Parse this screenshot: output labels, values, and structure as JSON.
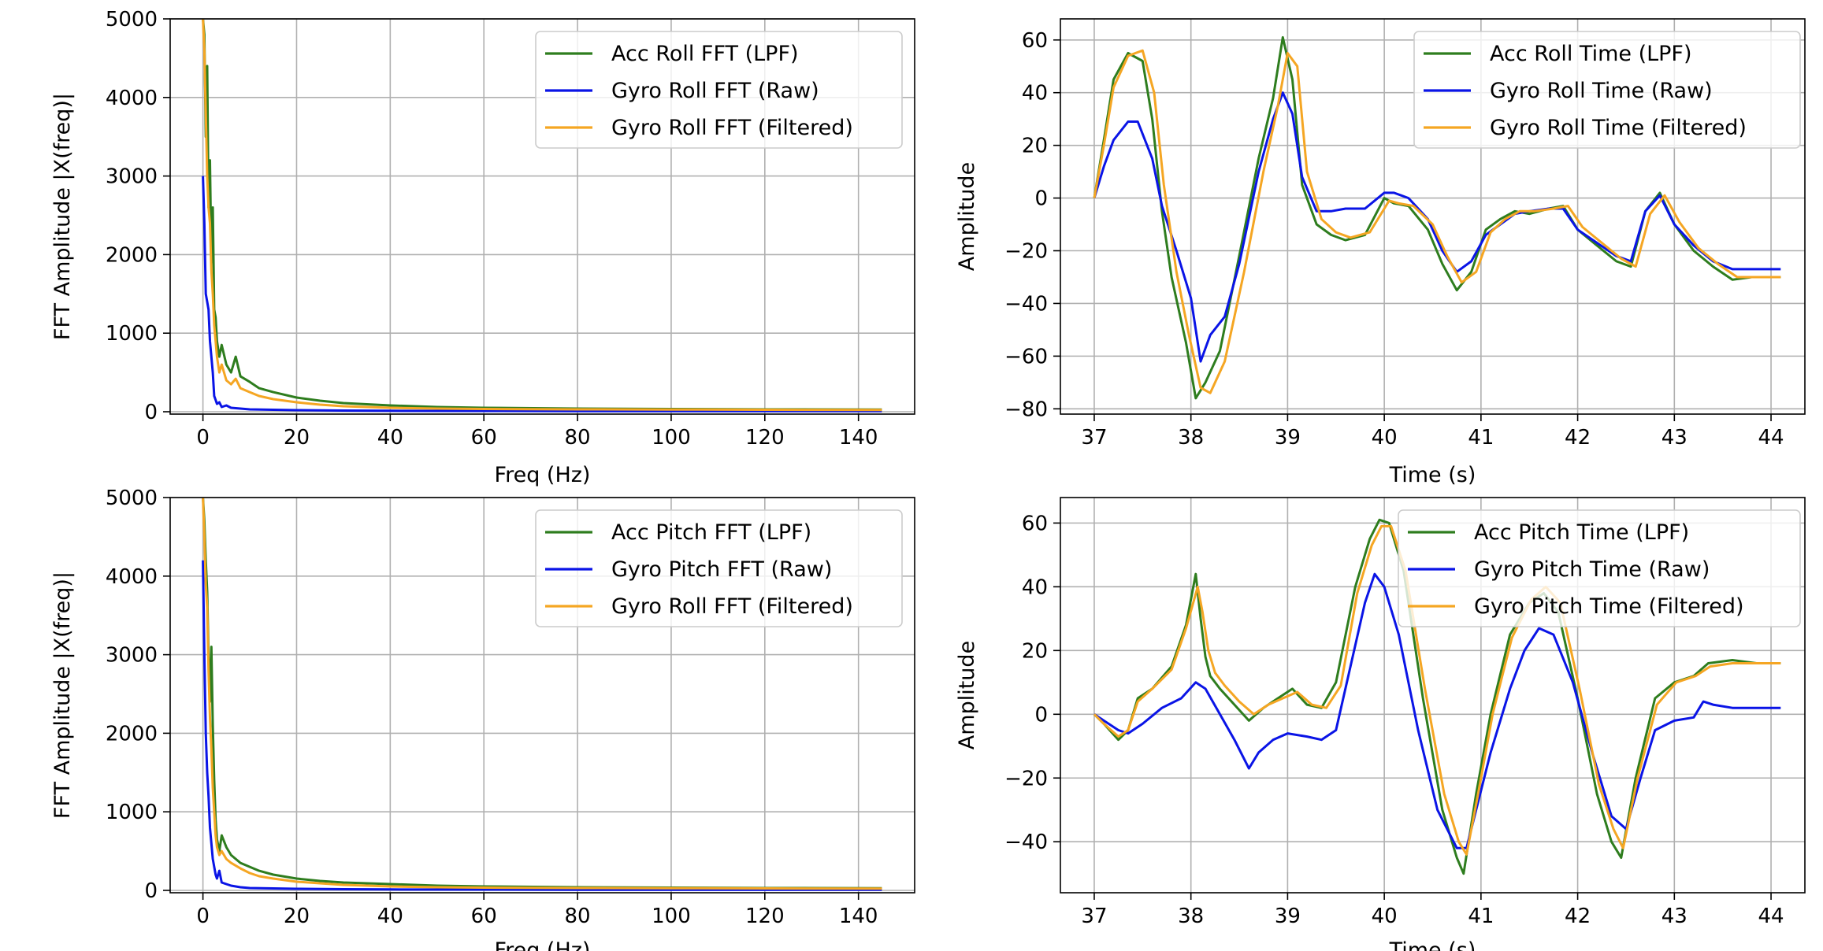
{
  "chart_data": [
    {
      "type": "line",
      "id": "roll-fft",
      "xlabel": "Freq (Hz)",
      "ylabel": "FFT Amplitude |X(freq)|",
      "xlim": [
        -7,
        152
      ],
      "ylim": [
        -30,
        5000
      ],
      "xticks": [
        0,
        20,
        40,
        60,
        80,
        100,
        120,
        140
      ],
      "yticks": [
        0,
        1000,
        2000,
        3000,
        4000,
        5000
      ],
      "grid": true,
      "legend_position": "top-right",
      "series": [
        {
          "name": "Acc Roll FFT (LPF)",
          "color": "#2e7d1e",
          "x": [
            0,
            0.3,
            0.6,
            0.9,
            1.2,
            1.5,
            1.8,
            2.1,
            2.4,
            2.7,
            3.0,
            3.5,
            4,
            5,
            6,
            7,
            8,
            10,
            12,
            15,
            20,
            25,
            30,
            40,
            50,
            60,
            80,
            100,
            120,
            145
          ],
          "y": [
            5000,
            4800,
            3500,
            4400,
            2600,
            3200,
            1900,
            2600,
            1300,
            1200,
            900,
            700,
            850,
            600,
            500,
            700,
            450,
            380,
            300,
            250,
            180,
            140,
            110,
            80,
            60,
            50,
            40,
            35,
            30,
            28
          ]
        },
        {
          "name": "Gyro Roll FFT (Raw)",
          "color": "#0a14e6",
          "x": [
            0,
            0.3,
            0.6,
            0.9,
            1.2,
            1.5,
            1.8,
            2.1,
            2.4,
            2.7,
            3.0,
            3.5,
            4,
            5,
            6,
            8,
            10,
            15,
            20,
            30,
            40,
            60,
            80,
            100,
            120,
            145
          ],
          "y": [
            3000,
            2400,
            1500,
            1400,
            1300,
            900,
            700,
            500,
            200,
            150,
            100,
            120,
            60,
            80,
            50,
            40,
            30,
            25,
            20,
            15,
            12,
            10,
            8,
            8,
            8,
            8
          ]
        },
        {
          "name": "Gyro Roll FFT (Filtered)",
          "color": "#f5a623",
          "x": [
            0,
            0.3,
            0.6,
            0.9,
            1.2,
            1.5,
            1.8,
            2.1,
            2.4,
            2.7,
            3.0,
            3.5,
            4,
            5,
            6,
            7,
            8,
            10,
            12,
            15,
            20,
            25,
            30,
            40,
            50,
            60,
            80,
            100,
            120,
            145
          ],
          "y": [
            5000,
            4600,
            3800,
            3000,
            2600,
            2400,
            1800,
            1500,
            1100,
            900,
            700,
            500,
            600,
            400,
            350,
            420,
            300,
            250,
            200,
            160,
            120,
            90,
            70,
            50,
            40,
            35,
            30,
            28,
            25,
            22
          ]
        }
      ]
    },
    {
      "type": "line",
      "id": "roll-time",
      "xlabel": "Time (s)",
      "ylabel": "Amplitude",
      "xlim": [
        36.65,
        44.35
      ],
      "ylim": [
        -82,
        68
      ],
      "xticks": [
        37,
        38,
        39,
        40,
        41,
        42,
        43,
        44
      ],
      "yticks": [
        -80,
        -60,
        -40,
        -20,
        0,
        20,
        40,
        60
      ],
      "grid": true,
      "legend_position": "top-right",
      "series": [
        {
          "name": "Acc Roll Time (LPF)",
          "color": "#2e7d1e",
          "x": [
            37.0,
            37.1,
            37.2,
            37.35,
            37.5,
            37.6,
            37.7,
            37.8,
            37.95,
            38.05,
            38.15,
            38.3,
            38.5,
            38.7,
            38.85,
            38.95,
            39.05,
            39.15,
            39.3,
            39.45,
            39.6,
            39.8,
            40.0,
            40.1,
            40.25,
            40.45,
            40.6,
            40.75,
            40.9,
            41.05,
            41.2,
            41.35,
            41.5,
            41.7,
            41.85,
            42.0,
            42.2,
            42.4,
            42.55,
            42.7,
            42.85,
            43.0,
            43.2,
            43.4,
            43.6,
            43.8,
            44.1
          ],
          "y": [
            0,
            22,
            45,
            55,
            52,
            30,
            -5,
            -30,
            -55,
            -76,
            -70,
            -58,
            -22,
            15,
            38,
            61,
            45,
            5,
            -10,
            -14,
            -16,
            -14,
            0,
            -2,
            -3,
            -12,
            -25,
            -35,
            -28,
            -12,
            -8,
            -5,
            -6,
            -4,
            -3,
            -12,
            -18,
            -24,
            -26,
            -5,
            2,
            -10,
            -20,
            -26,
            -31,
            -30,
            -30
          ]
        },
        {
          "name": "Gyro Roll Time (Raw)",
          "color": "#0a14e6",
          "x": [
            37.0,
            37.1,
            37.2,
            37.35,
            37.45,
            37.6,
            37.7,
            37.85,
            38.0,
            38.1,
            38.2,
            38.35,
            38.5,
            38.7,
            38.85,
            38.95,
            39.05,
            39.15,
            39.3,
            39.45,
            39.6,
            39.8,
            40.0,
            40.1,
            40.25,
            40.45,
            40.6,
            40.75,
            40.9,
            41.05,
            41.2,
            41.35,
            41.5,
            41.7,
            41.85,
            42.0,
            42.2,
            42.4,
            42.55,
            42.7,
            42.85,
            43.0,
            43.2,
            43.4,
            43.6,
            43.8,
            44.1
          ],
          "y": [
            0,
            12,
            22,
            29,
            29,
            15,
            -3,
            -20,
            -38,
            -62,
            -52,
            -45,
            -25,
            10,
            30,
            40,
            32,
            8,
            -5,
            -5,
            -4,
            -4,
            2,
            2,
            0,
            -8,
            -20,
            -28,
            -24,
            -14,
            -10,
            -6,
            -5,
            -4,
            -4,
            -12,
            -17,
            -22,
            -24,
            -5,
            1,
            -10,
            -18,
            -24,
            -27,
            -27,
            -27
          ]
        },
        {
          "name": "Gyro Roll Time (Filtered)",
          "color": "#f5a623",
          "x": [
            37.0,
            37.1,
            37.2,
            37.35,
            37.5,
            37.62,
            37.72,
            37.85,
            37.98,
            38.1,
            38.2,
            38.35,
            38.55,
            38.75,
            38.9,
            39.0,
            39.1,
            39.2,
            39.35,
            39.5,
            39.65,
            39.85,
            40.05,
            40.15,
            40.3,
            40.5,
            40.65,
            40.8,
            40.95,
            41.1,
            41.25,
            41.4,
            41.55,
            41.75,
            41.9,
            42.05,
            42.25,
            42.45,
            42.6,
            42.75,
            42.9,
            43.05,
            43.25,
            43.45,
            43.65,
            43.85,
            44.1
          ],
          "y": [
            0,
            20,
            42,
            54,
            56,
            40,
            5,
            -28,
            -52,
            -72,
            -74,
            -62,
            -28,
            10,
            35,
            55,
            50,
            10,
            -8,
            -13,
            -15,
            -13,
            -1,
            -2,
            -3,
            -10,
            -22,
            -32,
            -28,
            -13,
            -8,
            -5,
            -5,
            -4,
            -3,
            -11,
            -17,
            -23,
            -26,
            -6,
            1,
            -9,
            -19,
            -25,
            -30,
            -30,
            -30
          ]
        }
      ]
    },
    {
      "type": "line",
      "id": "pitch-fft",
      "xlabel": "Freq (Hz)",
      "ylabel": "FFT Amplitude |X(freq)|",
      "xlim": [
        -7,
        152
      ],
      "ylim": [
        -30,
        5000
      ],
      "xticks": [
        0,
        20,
        40,
        60,
        80,
        100,
        120,
        140
      ],
      "yticks": [
        0,
        1000,
        2000,
        3000,
        4000,
        5000
      ],
      "grid": true,
      "legend_position": "top-right",
      "series": [
        {
          "name": "Acc Pitch FFT (LPF)",
          "color": "#2e7d1e",
          "x": [
            0,
            0.3,
            0.6,
            0.9,
            1.2,
            1.5,
            1.8,
            2.1,
            2.4,
            2.7,
            3.0,
            3.5,
            4,
            5,
            6,
            8,
            10,
            12,
            15,
            20,
            25,
            30,
            40,
            50,
            60,
            80,
            100,
            120,
            145
          ],
          "y": [
            5000,
            4700,
            4200,
            3800,
            3000,
            2400,
            3100,
            2100,
            1400,
            900,
            650,
            500,
            700,
            550,
            450,
            350,
            300,
            250,
            200,
            150,
            120,
            100,
            80,
            60,
            50,
            40,
            35,
            30,
            28
          ]
        },
        {
          "name": "Gyro Pitch FFT (Raw)",
          "color": "#0a14e6",
          "x": [
            0,
            0.3,
            0.6,
            0.9,
            1.2,
            1.5,
            1.8,
            2.1,
            2.4,
            2.7,
            3.0,
            3.5,
            4,
            5,
            6,
            8,
            10,
            15,
            20,
            30,
            40,
            60,
            80,
            100,
            120,
            145
          ],
          "y": [
            4200,
            3000,
            2000,
            1500,
            1200,
            800,
            600,
            400,
            300,
            200,
            150,
            250,
            100,
            80,
            60,
            40,
            30,
            25,
            20,
            15,
            12,
            10,
            8,
            8,
            8,
            8
          ]
        },
        {
          "name": "Gyro Roll FFT (Filtered)",
          "color": "#f5a623",
          "x": [
            0,
            0.3,
            0.6,
            0.9,
            1.2,
            1.5,
            1.8,
            2.1,
            2.4,
            2.7,
            3.0,
            3.5,
            4,
            5,
            6,
            8,
            10,
            12,
            15,
            20,
            25,
            30,
            40,
            50,
            60,
            80,
            100,
            120,
            145
          ],
          "y": [
            5000,
            4500,
            3900,
            3600,
            2800,
            2200,
            1800,
            1300,
            1000,
            700,
            550,
            450,
            500,
            400,
            350,
            280,
            220,
            180,
            150,
            110,
            90,
            70,
            50,
            40,
            35,
            30,
            28,
            25,
            22
          ]
        }
      ]
    },
    {
      "type": "line",
      "id": "pitch-time",
      "xlabel": "Time (s)",
      "ylabel": "Amplitude",
      "xlim": [
        36.65,
        44.35
      ],
      "ylim": [
        -56,
        68
      ],
      "xticks": [
        37,
        38,
        39,
        40,
        41,
        42,
        43,
        44
      ],
      "yticks": [
        -40,
        -20,
        0,
        20,
        40,
        60
      ],
      "grid": true,
      "legend_position": "top-right",
      "series": [
        {
          "name": "Acc Pitch Time (LPF)",
          "color": "#2e7d1e",
          "x": [
            37.0,
            37.1,
            37.25,
            37.35,
            37.45,
            37.6,
            37.8,
            37.95,
            38.05,
            38.1,
            38.15,
            38.2,
            38.3,
            38.45,
            38.6,
            38.75,
            38.9,
            39.05,
            39.2,
            39.35,
            39.5,
            39.7,
            39.85,
            39.95,
            40.05,
            40.2,
            40.4,
            40.6,
            40.75,
            40.82,
            40.95,
            41.1,
            41.3,
            41.5,
            41.65,
            41.8,
            42.0,
            42.2,
            42.35,
            42.45,
            42.6,
            42.8,
            43.0,
            43.2,
            43.35,
            43.6,
            43.85,
            44.1
          ],
          "y": [
            0,
            -3,
            -8,
            -5,
            5,
            8,
            15,
            28,
            44,
            30,
            18,
            12,
            8,
            3,
            -2,
            2,
            5,
            8,
            3,
            2,
            10,
            40,
            55,
            61,
            60,
            45,
            5,
            -30,
            -45,
            -50,
            -25,
            0,
            25,
            35,
            38,
            32,
            5,
            -25,
            -40,
            -45,
            -20,
            5,
            10,
            12,
            16,
            17,
            16,
            16
          ]
        },
        {
          "name": "Gyro Pitch Time (Raw)",
          "color": "#0a14e6",
          "x": [
            37.0,
            37.1,
            37.25,
            37.35,
            37.5,
            37.7,
            37.9,
            38.05,
            38.15,
            38.3,
            38.45,
            38.6,
            38.7,
            38.85,
            39.0,
            39.2,
            39.35,
            39.5,
            39.65,
            39.8,
            39.9,
            40.0,
            40.15,
            40.35,
            40.55,
            40.75,
            40.85,
            40.95,
            41.1,
            41.3,
            41.45,
            41.6,
            41.75,
            41.95,
            42.15,
            42.35,
            42.5,
            42.65,
            42.8,
            43.0,
            43.2,
            43.3,
            43.4,
            43.6,
            43.85,
            44.1
          ],
          "y": [
            0,
            -2,
            -5,
            -6,
            -3,
            2,
            5,
            10,
            8,
            0,
            -8,
            -17,
            -12,
            -8,
            -6,
            -7,
            -8,
            -5,
            15,
            35,
            44,
            40,
            25,
            -5,
            -30,
            -42,
            -42,
            -30,
            -12,
            8,
            20,
            27,
            25,
            10,
            -12,
            -32,
            -36,
            -20,
            -5,
            -2,
            -1,
            4,
            3,
            2,
            2,
            2
          ]
        },
        {
          "name": "Gyro Pitch Time (Filtered)",
          "color": "#f5a623",
          "x": [
            37.0,
            37.1,
            37.25,
            37.35,
            37.45,
            37.6,
            37.8,
            37.95,
            38.07,
            38.12,
            38.18,
            38.25,
            38.35,
            38.5,
            38.65,
            38.8,
            38.95,
            39.1,
            39.25,
            39.4,
            39.55,
            39.72,
            39.87,
            39.97,
            40.07,
            40.22,
            40.42,
            40.62,
            40.77,
            40.85,
            40.97,
            41.12,
            41.32,
            41.52,
            41.67,
            41.82,
            42.02,
            42.22,
            42.37,
            42.47,
            42.62,
            42.82,
            43.02,
            43.22,
            43.37,
            43.6,
            43.85,
            44.1
          ],
          "y": [
            0,
            -3,
            -7,
            -5,
            4,
            8,
            14,
            27,
            40,
            32,
            20,
            13,
            9,
            4,
            0,
            3,
            5,
            7,
            3,
            2,
            9,
            38,
            53,
            59,
            59,
            45,
            8,
            -25,
            -40,
            -44,
            -25,
            0,
            24,
            36,
            40,
            35,
            8,
            -22,
            -36,
            -42,
            -20,
            3,
            10,
            12,
            15,
            16,
            16,
            16
          ]
        }
      ]
    }
  ]
}
